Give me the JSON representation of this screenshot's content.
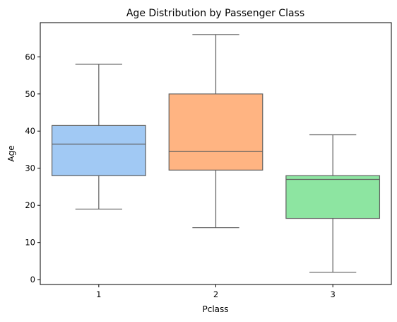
{
  "chart_data": {
    "type": "box",
    "title": "Age Distribution by Passenger Class",
    "xlabel": "Pclass",
    "ylabel": "Age",
    "categories": [
      "1",
      "2",
      "3"
    ],
    "yticks": [
      0,
      10,
      20,
      30,
      40,
      50,
      60
    ],
    "ylim": [
      -1.3,
      69.2
    ],
    "grid": false,
    "boxes": [
      {
        "category": "1",
        "whisker_low": 19,
        "q1": 28,
        "median": 36.5,
        "q3": 41.5,
        "whisker_high": 58,
        "color": "#a1c9f4"
      },
      {
        "category": "2",
        "whisker_low": 14,
        "q1": 29.5,
        "median": 34.5,
        "q3": 50,
        "whisker_high": 66,
        "color": "#ffb482"
      },
      {
        "category": "3",
        "whisker_low": 2,
        "q1": 16.5,
        "median": 27,
        "q3": 28,
        "whisker_high": 39,
        "color": "#8de5a1"
      }
    ],
    "line_color": "#5f5f5f"
  }
}
